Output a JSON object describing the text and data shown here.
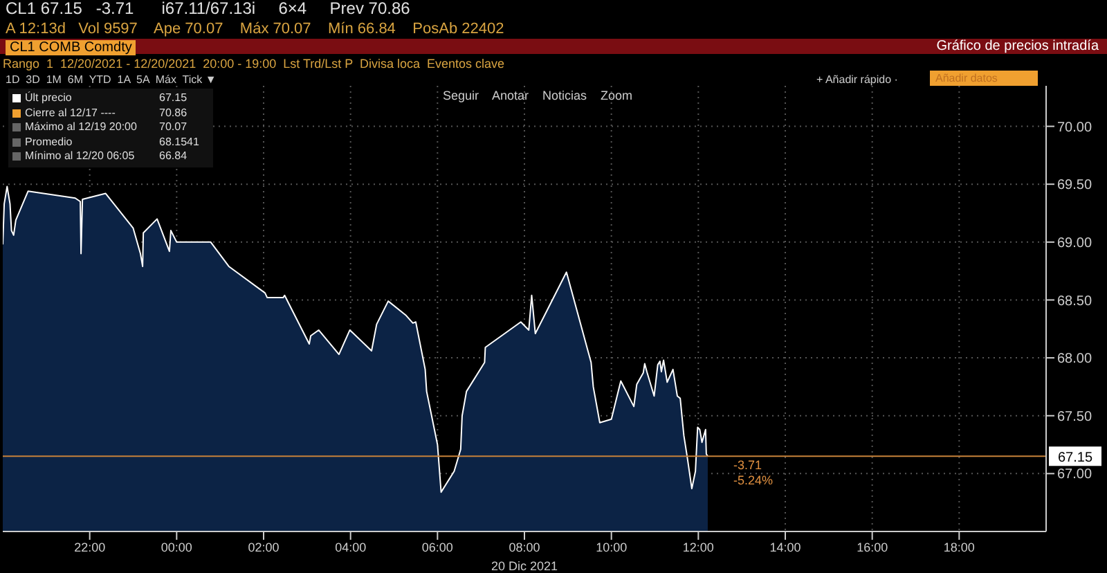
{
  "chart_data": {
    "type": "area",
    "title": "Gráfico de precios intradía",
    "xlabel": "20 Dic 2021",
    "x": [
      "2021-12-19T20:00",
      "2021-12-19T20:02",
      "2021-12-19T20:06",
      "2021-12-19T20:10",
      "2021-12-19T20:12",
      "2021-12-19T20:15",
      "2021-12-19T20:18",
      "2021-12-19T20:35",
      "2021-12-19T21:40",
      "2021-12-19T21:47",
      "2021-12-19T21:48",
      "2021-12-19T21:50",
      "2021-12-19T22:22",
      "2021-12-19T23:00",
      "2021-12-19T23:10",
      "2021-12-19T23:13",
      "2021-12-19T23:14",
      "2021-12-19T23:33",
      "2021-12-19T23:50",
      "2021-12-19T23:52",
      "2021-12-20T00:00",
      "2021-12-20T00:47",
      "2021-12-20T01:12",
      "2021-12-20T02:02",
      "2021-12-20T02:05",
      "2021-12-20T02:27",
      "2021-12-20T02:29",
      "2021-12-20T03:03",
      "2021-12-20T03:05",
      "2021-12-20T03:16",
      "2021-12-20T03:44",
      "2021-12-20T03:59",
      "2021-12-20T04:29",
      "2021-12-20T04:36",
      "2021-12-20T04:52",
      "2021-12-20T05:16",
      "2021-12-20T05:26",
      "2021-12-20T05:30",
      "2021-12-20T05:43",
      "2021-12-20T05:45",
      "2021-12-20T06:00",
      "2021-12-20T06:05",
      "2021-12-20T06:23",
      "2021-12-20T06:32",
      "2021-12-20T06:34",
      "2021-12-20T06:40",
      "2021-12-20T07:05",
      "2021-12-20T07:06",
      "2021-12-20T07:55",
      "2021-12-20T08:06",
      "2021-12-20T08:10",
      "2021-12-20T08:15",
      "2021-12-20T08:58",
      "2021-12-20T09:32",
      "2021-12-20T09:35",
      "2021-12-20T09:44",
      "2021-12-20T10:00",
      "2021-12-20T10:13",
      "2021-12-20T10:31",
      "2021-12-20T10:35",
      "2021-12-20T10:44",
      "2021-12-20T10:46",
      "2021-12-20T10:49",
      "2021-12-20T10:59",
      "2021-12-20T11:04",
      "2021-12-20T11:07",
      "2021-12-20T11:09",
      "2021-12-20T11:12",
      "2021-12-20T11:17",
      "2021-12-20T11:25",
      "2021-12-20T11:31",
      "2021-12-20T11:35",
      "2021-12-20T11:40",
      "2021-12-20T11:45",
      "2021-12-20T11:51",
      "2021-12-20T11:56",
      "2021-12-20T11:59",
      "2021-12-20T12:02",
      "2021-12-20T12:05",
      "2021-12-20T12:10",
      "2021-12-20T12:11",
      "2021-12-20T12:13"
    ],
    "series": [
      {
        "color": "#ffffff",
        "values": [
          68.98,
          69.33,
          69.48,
          69.33,
          69.1,
          69.06,
          69.19,
          69.44,
          69.38,
          69.35,
          68.9,
          69.37,
          69.42,
          69.12,
          68.9,
          68.79,
          69.08,
          69.2,
          68.92,
          69.1,
          69.0,
          69.0,
          68.79,
          68.56,
          68.52,
          68.52,
          68.54,
          68.12,
          68.19,
          68.24,
          68.03,
          68.24,
          68.06,
          68.29,
          68.49,
          68.37,
          68.3,
          68.31,
          67.9,
          67.71,
          67.25,
          66.84,
          67.02,
          67.21,
          67.5,
          67.71,
          67.96,
          68.09,
          68.31,
          68.24,
          68.54,
          68.21,
          68.74,
          67.96,
          67.75,
          67.44,
          67.47,
          67.8,
          67.58,
          67.77,
          67.87,
          67.95,
          67.88,
          67.67,
          67.94,
          67.97,
          67.88,
          67.98,
          67.79,
          67.9,
          67.67,
          67.65,
          67.33,
          67.13,
          66.87,
          67.02,
          67.4,
          67.38,
          67.27,
          67.38,
          67.17,
          67.15
        ]
      }
    ],
    "xlim": [
      "2021-12-19T20:00",
      "2021-12-20T20:00"
    ],
    "xticks": [
      {
        "value": "2021-12-19T22:00",
        "label": "22:00"
      },
      {
        "value": "2021-12-20T00:00",
        "label": "00:00"
      },
      {
        "value": "2021-12-20T02:00",
        "label": "02:00"
      },
      {
        "value": "2021-12-20T04:00",
        "label": "04:00"
      },
      {
        "value": "2021-12-20T06:00",
        "label": "06:00"
      },
      {
        "value": "2021-12-20T08:00",
        "label": "08:00"
      },
      {
        "value": "2021-12-20T10:00",
        "label": "10:00"
      },
      {
        "value": "2021-12-20T12:00",
        "label": "12:00"
      },
      {
        "value": "2021-12-20T14:00",
        "label": "14:00"
      },
      {
        "value": "2021-12-20T16:00",
        "label": "16:00"
      },
      {
        "value": "2021-12-20T18:00",
        "label": "18:00"
      }
    ],
    "ylim": [
      66.5,
      70.35
    ],
    "yticks": [
      {
        "value": 67,
        "label": "67.00"
      },
      {
        "value": 67.5,
        "label": "67.50"
      },
      {
        "value": 68,
        "label": "68.00"
      },
      {
        "value": 68.5,
        "label": "68.50"
      },
      {
        "value": 69,
        "label": "69.00"
      },
      {
        "value": 69.5,
        "label": "69.50"
      },
      {
        "value": 70,
        "label": "70.00"
      }
    ],
    "ref_lines": [
      {
        "axis": "y",
        "value": 67.15,
        "label": "67.15",
        "color": "#c8823a"
      }
    ],
    "grid": true,
    "annotations": [
      "CL1 67.15   -3.71      i67.11/67.13i     6×4     Prev 70.86",
      "A 12:13d   Vol 9597    Ape 70.07    Máx 70.07    Mín 66.84    PosAb 22402",
      "CL1 COMB Comdty",
      "Rango  1  12/20/2021 - 12/20/2021  20:00 - 19:00  Lst Trd/Lst P  Divisa loca  Eventos clave",
      "1D  3D  1M  6M  YTD  1A  5A  Máx  Tick ▼",
      "Seguir    Anotar    Noticias    Zoom",
      "+ Añadir rápido ·",
      "Añadir datos",
      "-3.71",
      "-5.24%",
      "Últ precio",
      "67.15",
      "Cierre al 12/17 ----",
      "70.86",
      "Máximo al 12/19 20:00",
      "70.07",
      "Promedio",
      "68.1541",
      "Mínimo al 12/20 06:05",
      "66.84"
    ]
  }
}
